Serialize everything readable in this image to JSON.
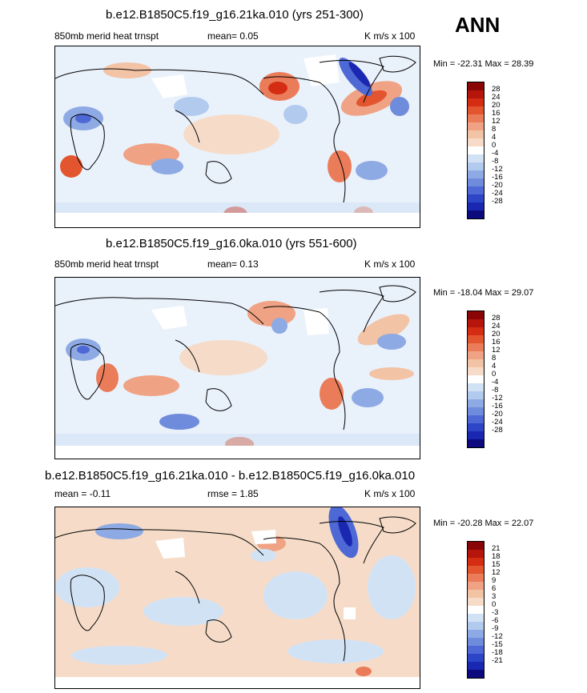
{
  "season": "ANN",
  "palette_pos": [
    "#f6dcc8",
    "#f3c3a5",
    "#f0a384",
    "#ea7c5a",
    "#e2552f",
    "#d42d13",
    "#b5150b",
    "#8a0606"
  ],
  "palette_neg": [
    "#d2e2f5",
    "#b3caef",
    "#8eaae4",
    "#6f8bdc",
    "#4e68d5",
    "#2d45c7",
    "#1a27b0",
    "#0c0a7d"
  ],
  "panels": [
    {
      "title": "b.e12.B1850C5.f19_g16.21ka.010 (yrs 251-300)",
      "left_label": "850mb merid heat trnspt",
      "mid_label": "mean=  0.05",
      "units": "K m/s x 100",
      "min_max": "Min = -22.31 Max =  28.39",
      "levels": [
        "28",
        "24",
        "20",
        "16",
        "12",
        "8",
        "4",
        "0",
        "-4",
        "-8",
        "-12",
        "-16",
        "-20",
        "-24",
        "-28"
      ]
    },
    {
      "title": "b.e12.B1850C5.f19_g16.0ka.010 (yrs 551-600)",
      "left_label": "850mb merid heat trnspt",
      "mid_label": "mean=  0.13",
      "units": "K m/s x 100",
      "min_max": "Min = -18.04 Max =  29.07",
      "levels": [
        "28",
        "24",
        "20",
        "16",
        "12",
        "8",
        "4",
        "0",
        "-4",
        "-8",
        "-12",
        "-16",
        "-20",
        "-24",
        "-28"
      ]
    },
    {
      "title": "b.e12.B1850C5.f19_g16.21ka.010 - b.e12.B1850C5.f19_g16.0ka.010",
      "left_label": "mean =  -0.11",
      "mid_label": "rmse =  1.85",
      "units": "K m/s x 100",
      "min_max": "Min = -20.28 Max =  22.07",
      "levels": [
        "21",
        "18",
        "15",
        "12",
        "9",
        "6",
        "3",
        "0",
        "-3",
        "-6",
        "-9",
        "-12",
        "-15",
        "-18",
        "-21"
      ]
    }
  ]
}
